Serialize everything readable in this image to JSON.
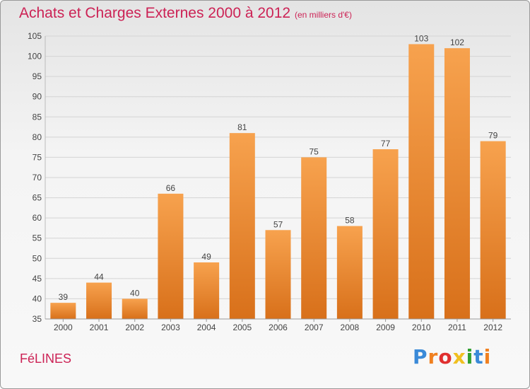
{
  "title": "Achats et Charges Externes 2000 à 2012",
  "unit": "(en milliers d'€)",
  "commune": "FéLINES",
  "logo": {
    "letters": [
      "P",
      "r",
      "o",
      "x",
      "i",
      "t",
      "i"
    ],
    "colors": [
      "#3a8ad8",
      "#f08020",
      "#e03030",
      "#f0c020",
      "#30a030",
      "#3a8ad8",
      "#f08020"
    ]
  },
  "colors": {
    "bar_top": "#f7a24e",
    "bar_bottom": "#d8701a",
    "accent": "#cc2255"
  },
  "chart_data": {
    "type": "bar",
    "categories": [
      "2000",
      "2001",
      "2002",
      "2003",
      "2004",
      "2005",
      "2006",
      "2007",
      "2008",
      "2009",
      "2010",
      "2011",
      "2012"
    ],
    "values": [
      39,
      44,
      40,
      66,
      49,
      81,
      57,
      75,
      58,
      77,
      103,
      102,
      79
    ],
    "data_labels": [
      "39",
      "44",
      "40",
      "66",
      "49",
      "81",
      "57",
      "75",
      "58",
      "77",
      "103",
      "102",
      "79"
    ],
    "title": "Achats et Charges Externes 2000 à 2012",
    "xlabel": "",
    "ylabel": "",
    "ylim": [
      35,
      105
    ],
    "yticks": [
      35,
      40,
      45,
      50,
      55,
      60,
      65,
      70,
      75,
      80,
      85,
      90,
      95,
      100,
      105
    ],
    "grid": true,
    "legend": "none"
  }
}
